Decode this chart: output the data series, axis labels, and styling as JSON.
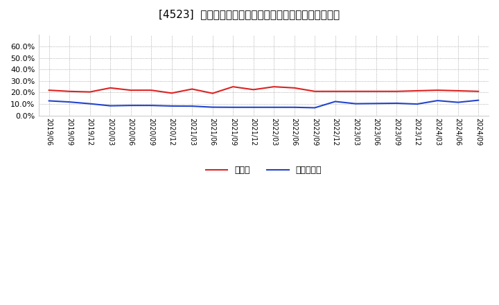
{
  "title": "[4523]  現預金、有利子負債の総資産に対する比率の推移",
  "x_labels": [
    "2019/06",
    "2019/09",
    "2019/12",
    "2020/03",
    "2020/06",
    "2020/09",
    "2020/12",
    "2021/03",
    "2021/06",
    "2021/09",
    "2021/12",
    "2022/03",
    "2022/06",
    "2022/09",
    "2022/12",
    "2023/03",
    "2023/06",
    "2023/09",
    "2023/12",
    "2024/03",
    "2024/06",
    "2024/09"
  ],
  "cash": [
    0.22,
    0.21,
    0.205,
    0.24,
    0.22,
    0.22,
    0.195,
    0.23,
    0.193,
    0.25,
    0.225,
    0.25,
    0.24,
    0.21,
    0.21,
    0.21,
    0.21,
    0.21,
    0.215,
    0.22,
    0.215,
    0.21
  ],
  "debt": [
    0.128,
    0.118,
    0.103,
    0.085,
    0.088,
    0.088,
    0.083,
    0.082,
    0.073,
    0.072,
    0.072,
    0.072,
    0.072,
    0.068,
    0.122,
    0.103,
    0.105,
    0.107,
    0.1,
    0.13,
    0.115,
    0.133
  ],
  "cash_color": "#dd2222",
  "debt_color": "#2244cc",
  "bg_color": "#ffffff",
  "plot_bg_color": "#ffffff",
  "grid_color": "#999999",
  "ylim": [
    0.0,
    0.7
  ],
  "yticks": [
    0.0,
    0.1,
    0.2,
    0.3,
    0.4,
    0.5,
    0.6
  ],
  "legend_cash": "現預金",
  "legend_debt": "有利子負債",
  "title_fontsize": 11,
  "tick_fontsize": 8,
  "line_width": 1.5
}
